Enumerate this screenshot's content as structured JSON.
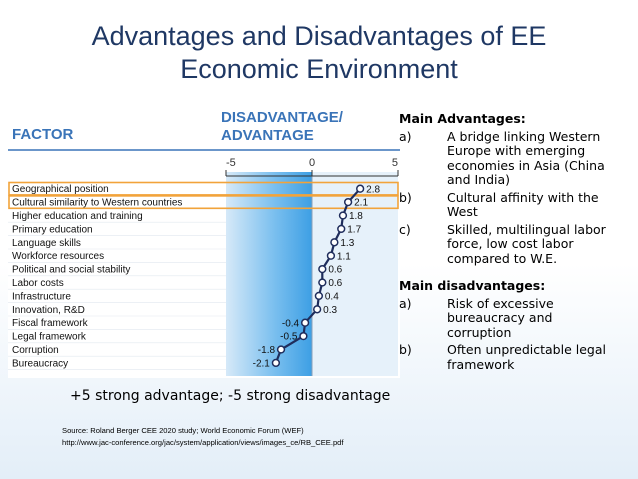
{
  "slide": {
    "title_line1": "Advantages and Disadvantages of EE",
    "title_line2": "Economic Environment"
  },
  "chart_data": {
    "type": "scatter",
    "header_factor": "FACTOR",
    "header_value_line1": "DISADVANTAGE/",
    "header_value_line2": "ADVANTAGE",
    "xlim": [
      -5,
      5
    ],
    "x_ticks": [
      "-5",
      "0",
      "5"
    ],
    "categories": [
      "Geographical position",
      "Cultural similarity to Western countries",
      "Higher education and training",
      "Primary education",
      "Language skills",
      "Workforce resources",
      "Political and social stability",
      "Labor costs",
      "Infrastructure",
      "Innovation, R&D",
      "Fiscal framework",
      "Legal framework",
      "Corruption",
      "Bureaucracy"
    ],
    "values": [
      2.8,
      2.1,
      1.8,
      1.7,
      1.3,
      1.1,
      0.6,
      0.6,
      0.4,
      0.3,
      -0.4,
      -0.5,
      -1.8,
      -2.1
    ],
    "value_labels": [
      "2.8",
      "2.1",
      "1.8",
      "1.7",
      "1.3",
      "1.1",
      "0.6",
      "0.6",
      "0.4",
      "0.3",
      "-0.4",
      "-0.5",
      "-1.8",
      "-2.1"
    ],
    "highlighted_rows": [
      0,
      1
    ],
    "colors": {
      "header_text": "#3a74b8",
      "line": "#1f2d5c",
      "highlight": "#f2a33a",
      "band_light": "#cfe4f6",
      "band_dark": "#45a4e6"
    }
  },
  "advantages": {
    "heading": "Main Advantages:",
    "items": [
      {
        "label": "a)",
        "text": "A bridge linking Western Europe with emerging economies in Asia (China and India)"
      },
      {
        "label": "b)",
        "text": "Cultural affinity with the West"
      },
      {
        "label": "c)",
        "text": "Skilled, multilingual labor force, low cost labor compared to W.E."
      }
    ]
  },
  "disadvantages": {
    "heading": "Main disadvantages:",
    "items": [
      {
        "label": "a)",
        "text": "Risk of excessive bureaucracy and corruption"
      },
      {
        "label": "b)",
        "text": "Often unpredictable legal framework"
      }
    ]
  },
  "scale_note": "+5 strong advantage; -5 strong disadvantage",
  "source": {
    "line1": "Source: Roland Berger CEE 2020 study; World Economic Forum (WEF)",
    "line2": "http://www.jac-conference.org/jac/system/application/views/images_ce/RB_CEE.pdf"
  }
}
